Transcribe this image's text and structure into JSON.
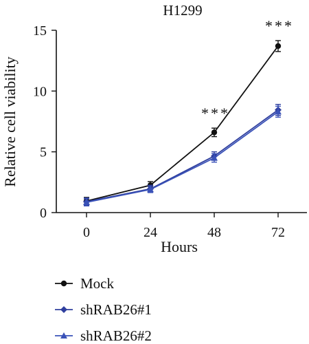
{
  "chart_data": {
    "type": "line",
    "title": "H1299",
    "xlabel": "Hours",
    "ylabel": "Relative cell viability",
    "x": [
      0,
      24,
      48,
      72
    ],
    "xticks": [
      "0",
      "24",
      "48",
      "72"
    ],
    "yticks": [
      "0",
      "5",
      "10",
      "15"
    ],
    "ylim": [
      0,
      15
    ],
    "grid": false,
    "legend_position": "bottom-left",
    "series": [
      {
        "name": "Mock",
        "marker": "circle",
        "color": "#111111",
        "values": [
          0.95,
          2.25,
          6.6,
          13.7
        ],
        "errors": [
          0.3,
          0.3,
          0.35,
          0.45
        ]
      },
      {
        "name": "shRAB26#1",
        "marker": "diamond",
        "color": "#2f3f9e",
        "values": [
          0.9,
          1.95,
          4.65,
          8.45
        ],
        "errors": [
          0.3,
          0.3,
          0.35,
          0.45
        ]
      },
      {
        "name": "shRAB26#2",
        "marker": "triangle",
        "color": "#3a52b8",
        "values": [
          0.85,
          1.9,
          4.5,
          8.3
        ],
        "errors": [
          0.3,
          0.25,
          0.35,
          0.45
        ]
      }
    ],
    "annotations": [
      {
        "x": 48,
        "text": "***"
      },
      {
        "x": 72,
        "text": "***"
      }
    ]
  }
}
